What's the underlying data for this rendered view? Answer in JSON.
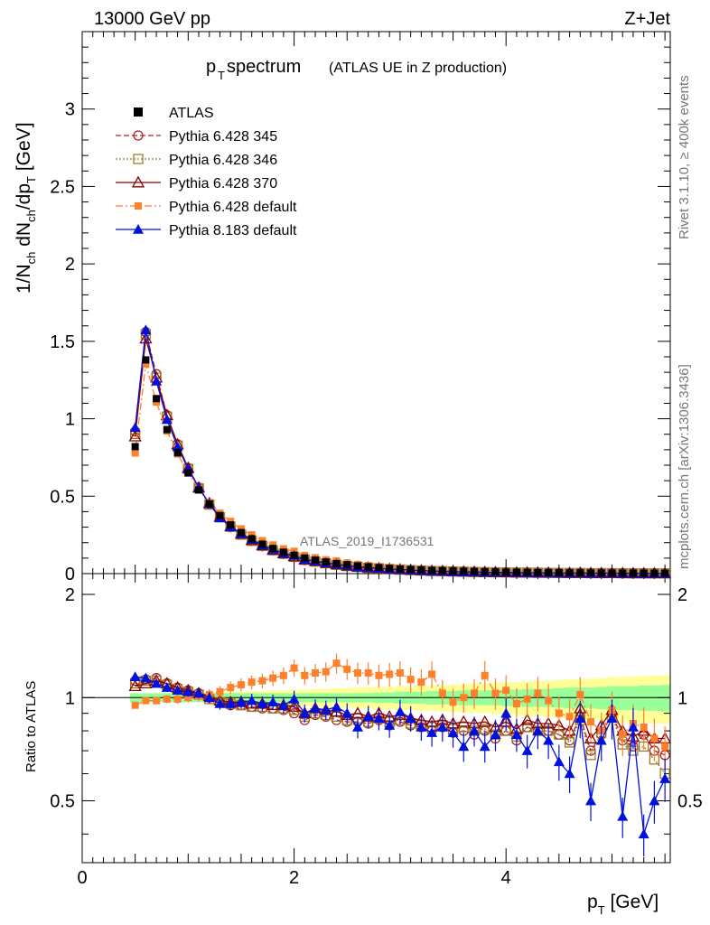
{
  "header": {
    "energy": "13000 GeV pp",
    "process": "Z+Jet",
    "title_main": "p",
    "title_sub": "T",
    "title_rest": " spectrum",
    "title_note": "(ATLAS UE in Z production)",
    "analysis_id": "ATLAS_2019_I1736531",
    "side_rivet": "Rivet 3.1.10, ≥ 400k events",
    "side_url": "mcplots.cern.ch [arXiv:1306.3436]"
  },
  "colors": {
    "atlas": "#000000",
    "p345": "#b22222",
    "p346": "#9a7b2a",
    "p370": "#8b0000",
    "p6def": "#ff7f2a",
    "p8def": "#0011dd",
    "band_inner": "#99ff99",
    "band_outer": "#ffff99"
  },
  "chart_data": {
    "type": "line",
    "title": "pT spectrum (ATLAS UE in Z production)",
    "xlabel": "pT [GeV]",
    "ylabel": "1/Nch dNch/dpT [GeV]",
    "ratio_ylabel": "Ratio to ATLAS",
    "xlim": [
      0,
      5.55
    ],
    "ylim": [
      0,
      3.5
    ],
    "ratio_ylim": [
      0.33,
      2.3
    ],
    "x_ticks": [
      "0",
      "2",
      "4"
    ],
    "y_ticks": [
      "0",
      "0.5",
      "1",
      "1.5",
      "2",
      "2.5",
      "3"
    ],
    "ratio_ticks_left": [
      "0.5",
      "1",
      "2"
    ],
    "ratio_ticks_right": [
      "0.5",
      "1",
      "2"
    ],
    "x": [
      0.5,
      0.6,
      0.7,
      0.8,
      0.9,
      1.0,
      1.1,
      1.2,
      1.3,
      1.4,
      1.5,
      1.6,
      1.7,
      1.8,
      1.9,
      2.0,
      2.1,
      2.2,
      2.3,
      2.4,
      2.5,
      2.6,
      2.7,
      2.8,
      2.9,
      3.0,
      3.1,
      3.2,
      3.3,
      3.4,
      3.5,
      3.6,
      3.7,
      3.8,
      3.9,
      4.0,
      4.1,
      4.2,
      4.3,
      4.4,
      4.5,
      4.6,
      4.7,
      4.8,
      4.9,
      5.0,
      5.1,
      5.2,
      5.3,
      5.4,
      5.5
    ],
    "atlas_values": [
      0.82,
      1.38,
      1.13,
      0.93,
      0.78,
      0.65,
      0.54,
      0.45,
      0.375,
      0.315,
      0.265,
      0.225,
      0.19,
      0.162,
      0.138,
      0.118,
      0.101,
      0.087,
      0.075,
      0.065,
      0.057,
      0.05,
      0.044,
      0.039,
      0.034,
      0.03,
      0.027,
      0.024,
      0.021,
      0.019,
      0.017,
      0.015,
      0.0135,
      0.012,
      0.0108,
      0.0097,
      0.0087,
      0.0078,
      0.007,
      0.0063,
      0.0057,
      0.0051,
      0.0046,
      0.0042,
      0.0038,
      0.0034,
      0.0031,
      0.0028,
      0.0025,
      0.0023,
      0.0021
    ],
    "band_inner": [
      0.03,
      0.03,
      0.03,
      0.03,
      0.03,
      0.03,
      0.03,
      0.03,
      0.03,
      0.03,
      0.03,
      0.03,
      0.03,
      0.03,
      0.03,
      0.03,
      0.03,
      0.03,
      0.03,
      0.03,
      0.03,
      0.03,
      0.03,
      0.035,
      0.035,
      0.04,
      0.04,
      0.04,
      0.045,
      0.045,
      0.045,
      0.05,
      0.05,
      0.05,
      0.05,
      0.055,
      0.055,
      0.06,
      0.06,
      0.06,
      0.065,
      0.07,
      0.07,
      0.07,
      0.075,
      0.08,
      0.08,
      0.08,
      0.085,
      0.085,
      0.09
    ],
    "band_outer": [
      0.03,
      0.03,
      0.03,
      0.03,
      0.03,
      0.03,
      0.03,
      0.035,
      0.035,
      0.04,
      0.04,
      0.045,
      0.045,
      0.05,
      0.05,
      0.055,
      0.055,
      0.06,
      0.06,
      0.065,
      0.065,
      0.07,
      0.07,
      0.075,
      0.075,
      0.08,
      0.08,
      0.085,
      0.085,
      0.09,
      0.09,
      0.095,
      0.1,
      0.1,
      0.105,
      0.11,
      0.11,
      0.115,
      0.12,
      0.12,
      0.125,
      0.13,
      0.135,
      0.135,
      0.14,
      0.145,
      0.15,
      0.15,
      0.155,
      0.16,
      0.16
    ],
    "series": [
      {
        "name": "Pythia 6.428 345",
        "key": "p345",
        "marker": "circle-open",
        "dash": "6,3",
        "ratio": [
          1.12,
          1.13,
          1.14,
          1.1,
          1.07,
          1.05,
          1.03,
          1.0,
          0.97,
          0.95,
          0.95,
          0.94,
          0.93,
          0.93,
          0.92,
          0.9,
          0.86,
          0.89,
          0.88,
          0.86,
          0.85,
          0.85,
          0.84,
          0.86,
          0.83,
          0.85,
          0.83,
          0.82,
          0.8,
          0.82,
          0.79,
          0.8,
          0.78,
          0.8,
          0.76,
          0.8,
          0.75,
          0.82,
          0.8,
          0.8,
          0.78,
          0.75,
          0.88,
          0.7,
          0.78,
          0.9,
          0.75,
          0.72,
          0.78,
          0.7,
          0.68
        ]
      },
      {
        "name": "Pythia 6.428 346",
        "key": "p346",
        "marker": "square-open",
        "dash": "2,2",
        "ratio": [
          1.1,
          1.12,
          1.12,
          1.09,
          1.06,
          1.04,
          1.02,
          0.99,
          0.97,
          0.96,
          0.95,
          0.94,
          0.94,
          0.93,
          0.93,
          0.92,
          0.88,
          0.9,
          0.89,
          0.88,
          0.86,
          0.87,
          0.85,
          0.87,
          0.85,
          0.86,
          0.84,
          0.83,
          0.82,
          0.83,
          0.81,
          0.82,
          0.8,
          0.81,
          0.78,
          0.8,
          0.77,
          0.82,
          0.8,
          0.8,
          0.78,
          0.74,
          0.86,
          0.68,
          0.79,
          0.88,
          0.73,
          0.7,
          0.72,
          0.66,
          0.6
        ]
      },
      {
        "name": "Pythia 6.428 370",
        "key": "p370",
        "marker": "triangle-open",
        "dash": "",
        "ratio": [
          1.08,
          1.1,
          1.12,
          1.1,
          1.07,
          1.05,
          1.03,
          1.01,
          0.98,
          0.97,
          0.97,
          0.96,
          0.96,
          0.95,
          0.95,
          0.94,
          0.9,
          0.93,
          0.92,
          0.91,
          0.89,
          0.9,
          0.88,
          0.9,
          0.88,
          0.89,
          0.87,
          0.86,
          0.85,
          0.86,
          0.84,
          0.85,
          0.84,
          0.85,
          0.82,
          0.85,
          0.81,
          0.86,
          0.84,
          0.84,
          0.83,
          0.8,
          0.93,
          0.76,
          0.83,
          0.92,
          0.8,
          0.77,
          0.8,
          0.76,
          0.76
        ]
      },
      {
        "name": "Pythia 6.428 default",
        "key": "p6def",
        "marker": "square-filled",
        "dash": "8,3,2,3",
        "ratio": [
          0.95,
          0.98,
          0.98,
          0.99,
          0.99,
          1.0,
          1.01,
          1.02,
          1.04,
          1.07,
          1.09,
          1.11,
          1.12,
          1.14,
          1.16,
          1.22,
          1.16,
          1.18,
          1.19,
          1.26,
          1.21,
          1.18,
          1.18,
          1.16,
          1.17,
          1.18,
          1.13,
          1.11,
          1.17,
          1.03,
          0.97,
          1.0,
          1.03,
          1.16,
          1.03,
          1.05,
          0.96,
          0.99,
          1.03,
          0.98,
          0.9,
          0.88,
          1.02,
          0.85,
          0.8,
          0.92,
          0.78,
          0.84,
          0.82,
          0.76,
          0.72
        ]
      },
      {
        "name": "Pythia 8.183 default",
        "key": "p8def",
        "marker": "triangle-filled",
        "dash": "",
        "ratio": [
          1.15,
          1.14,
          1.1,
          1.07,
          1.05,
          1.04,
          1.03,
          1.0,
          0.96,
          0.96,
          0.97,
          0.98,
          0.96,
          0.97,
          0.95,
          0.99,
          0.9,
          0.93,
          0.92,
          0.94,
          0.9,
          0.82,
          0.88,
          0.87,
          0.83,
          0.91,
          0.87,
          0.82,
          0.79,
          0.82,
          0.79,
          0.72,
          0.8,
          0.72,
          0.78,
          0.9,
          0.78,
          0.7,
          0.8,
          0.75,
          0.65,
          0.6,
          0.87,
          0.5,
          0.75,
          0.87,
          0.45,
          0.82,
          0.4,
          0.5,
          0.58
        ]
      }
    ],
    "legend": [
      "ATLAS",
      "Pythia 6.428 345",
      "Pythia 6.428 346",
      "Pythia 6.428 370",
      "Pythia 6.428 default",
      "Pythia 8.183 default"
    ]
  }
}
